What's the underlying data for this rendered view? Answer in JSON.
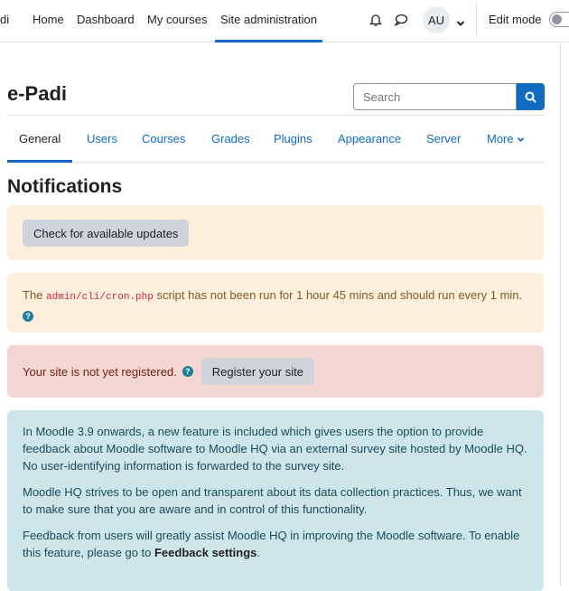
{
  "nav": {
    "brand": "di",
    "items": [
      "Home",
      "Dashboard",
      "My courses",
      "Site administration"
    ],
    "active": "Site administration",
    "avatar": "AU",
    "edit_mode": "Edit mode"
  },
  "site": {
    "title": "e-Padi"
  },
  "search": {
    "placeholder": "Search"
  },
  "tabs": [
    "General",
    "Users",
    "Courses",
    "Grades",
    "Plugins",
    "Appearance",
    "Server",
    "More"
  ],
  "page": {
    "heading": "Notifications"
  },
  "alerts": {
    "updates_button": "Check for available updates",
    "cron": {
      "prefix": "The ",
      "code": "admin/cli/cron.php",
      "suffix": " script has not been run for 1 hour 45 mins and should run every 1 min."
    },
    "register": {
      "text": "Your site is not yet registered.",
      "button": "Register your site"
    },
    "feedback": {
      "p1": "In Moodle 3.9 onwards, a new feature is included which gives users the option to provide feedback about Moodle software to Moodle HQ via an external survey site hosted by Moodle HQ. No user-identifying information is forwarded to the survey site.",
      "p2": "Moodle HQ strives to be open and transparent about its data collection practices. Thus, we want to make sure that you are aware and in control of this functionality.",
      "p3_prefix": "Feedback from users will greatly assist Moodle HQ in improving the Moodle software. To enable this feature, please go to ",
      "p3_link": "Feedback settings",
      "p3_suffix": "."
    }
  },
  "colors": {
    "accent": "#0f6cbf"
  }
}
